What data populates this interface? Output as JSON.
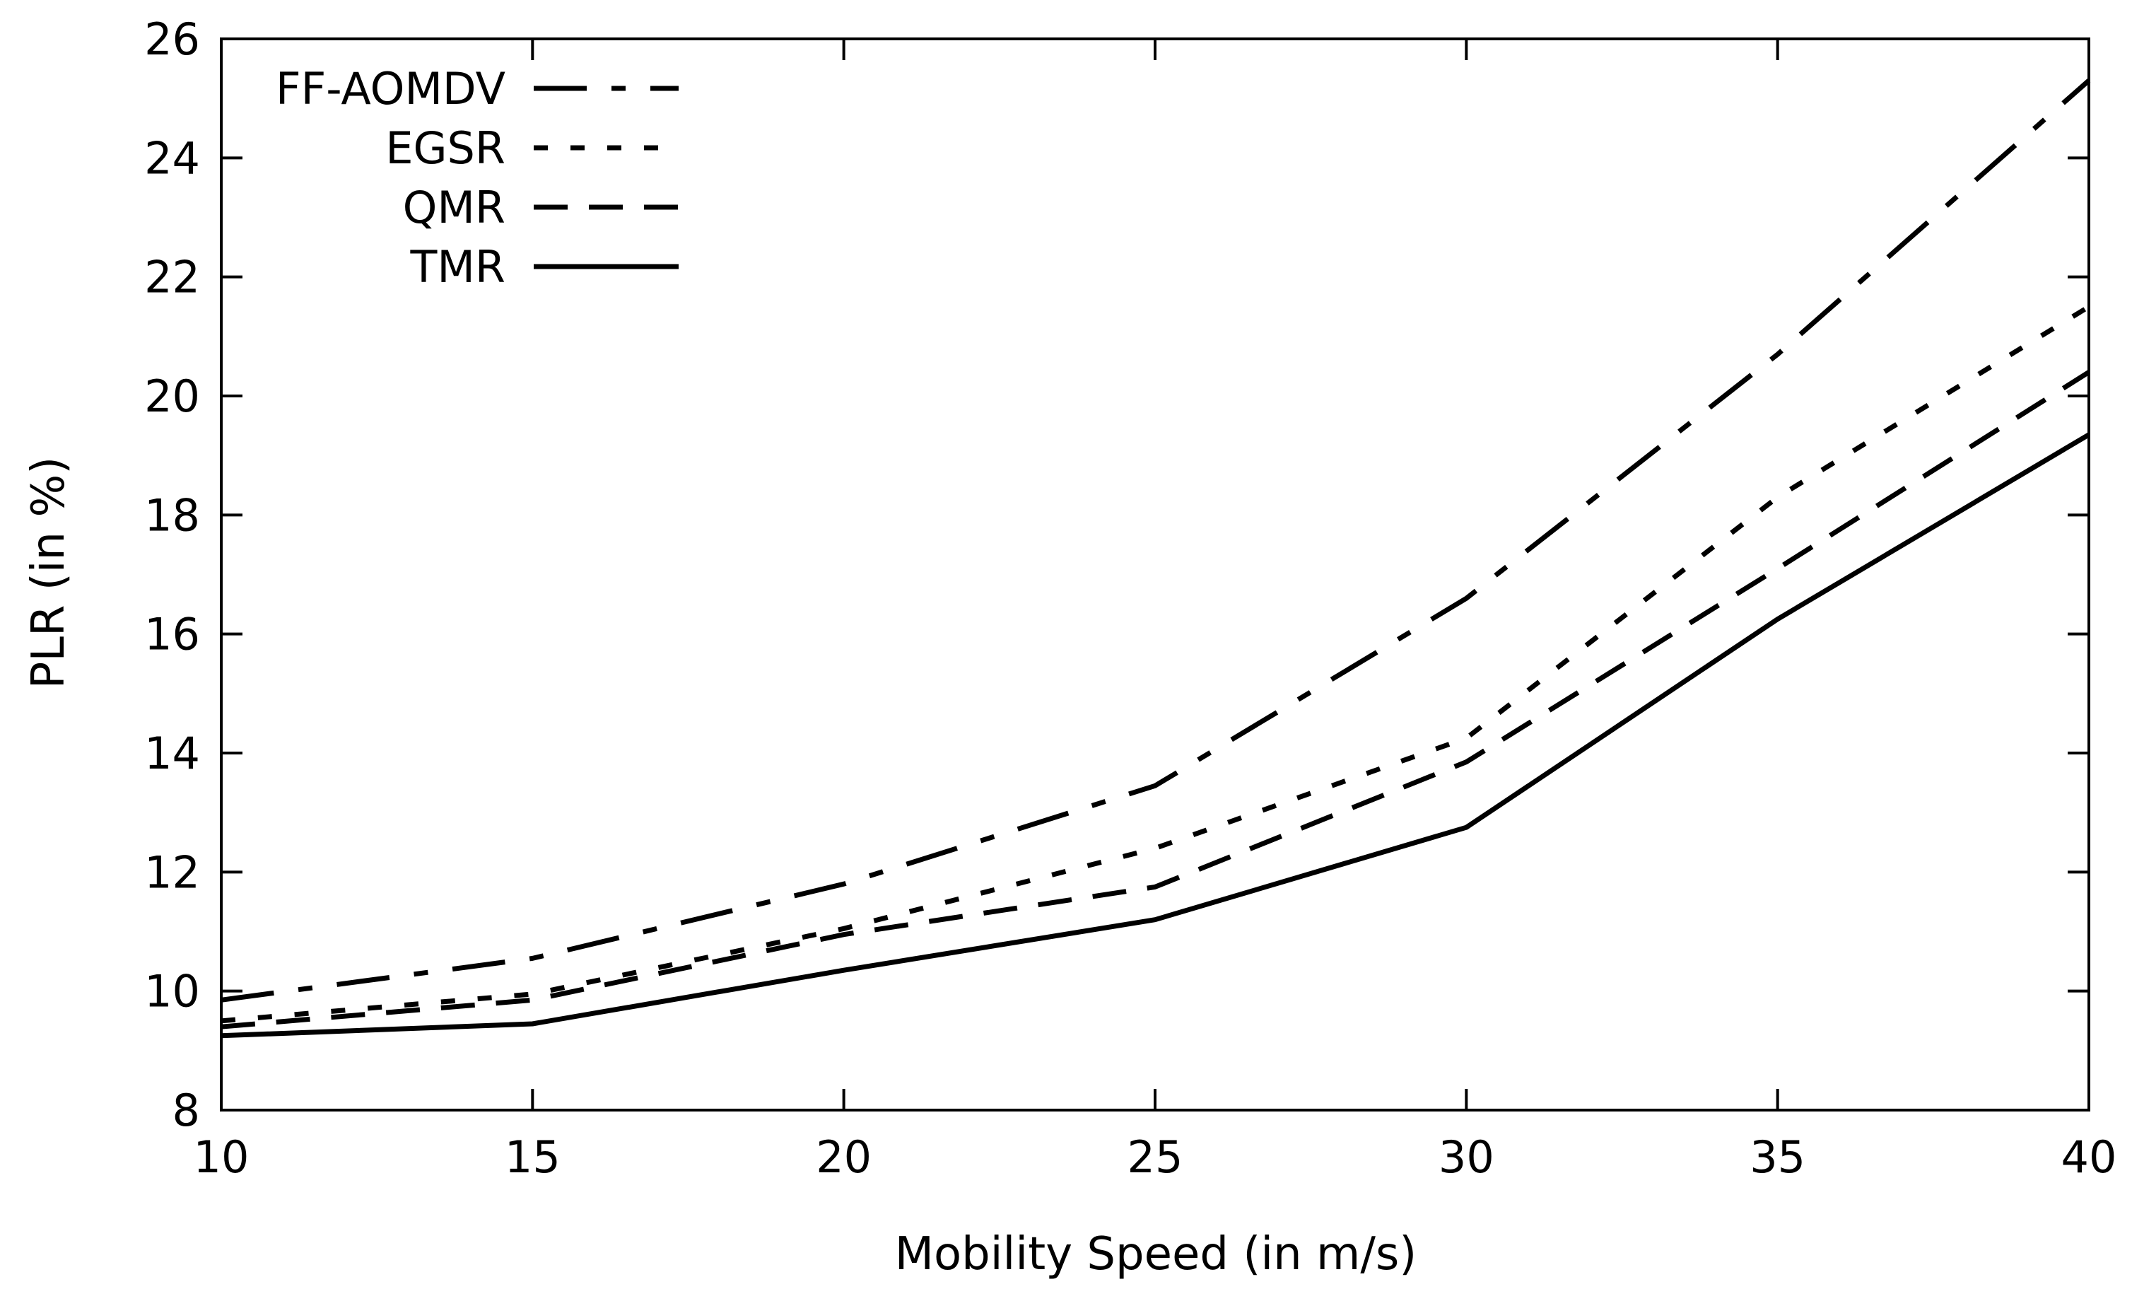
{
  "chart_data": {
    "type": "line",
    "title": "",
    "xlabel": "Mobility Speed (in m/s)",
    "ylabel": "PLR (in %)",
    "x": [
      10,
      15,
      20,
      25,
      30,
      35,
      40
    ],
    "xlim": [
      10,
      40
    ],
    "ylim": [
      8,
      26
    ],
    "xticks": [
      10,
      15,
      20,
      25,
      30,
      35,
      40
    ],
    "yticks": [
      8,
      10,
      12,
      14,
      16,
      18,
      20,
      22,
      24,
      26
    ],
    "grid": false,
    "legend_position": "top-left",
    "series": [
      {
        "name": "FF-AOMDV",
        "style": "dash-dot",
        "values": [
          9.85,
          10.55,
          11.8,
          13.45,
          16.6,
          20.7,
          25.3
        ]
      },
      {
        "name": "EGSR",
        "style": "dotted",
        "values": [
          9.5,
          9.95,
          11.05,
          12.4,
          14.25,
          18.3,
          21.5
        ]
      },
      {
        "name": "QMR",
        "style": "dashed",
        "values": [
          9.4,
          9.85,
          10.95,
          11.75,
          13.85,
          17.1,
          20.4
        ]
      },
      {
        "name": "TMR",
        "style": "solid",
        "values": [
          9.25,
          9.45,
          10.35,
          11.2,
          12.75,
          16.25,
          19.35
        ]
      }
    ],
    "colors": {
      "line": "#000000",
      "axis": "#000000",
      "background": "#ffffff"
    }
  }
}
